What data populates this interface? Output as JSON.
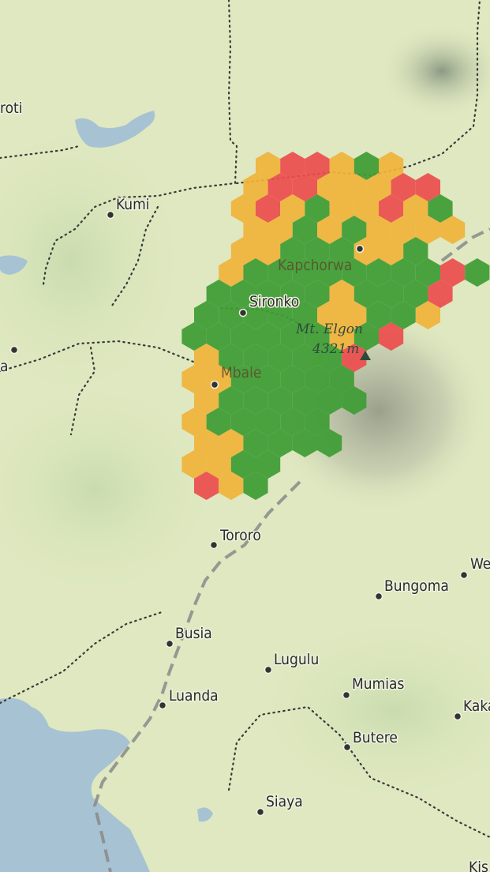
{
  "map": {
    "colors": {
      "land": "#dfe8c0",
      "water": "#a7c3d3",
      "hex_green": "#3e9c35",
      "hex_orange": "#f0b33a",
      "hex_red": "#ec4d4d"
    },
    "places": [
      {
        "id": "soroti",
        "label": "roti"
      },
      {
        "id": "kumi",
        "label": "Kumi"
      },
      {
        "id": "kapchorwa",
        "label": "Kapchorwa"
      },
      {
        "id": "sironko",
        "label": "Sironko"
      },
      {
        "id": "mbale",
        "label": "Mbale"
      },
      {
        "id": "west-edge",
        "label": "a"
      },
      {
        "id": "tororo",
        "label": "Tororo"
      },
      {
        "id": "webuye",
        "label": "We"
      },
      {
        "id": "bungoma",
        "label": "Bungoma"
      },
      {
        "id": "busia",
        "label": "Busia"
      },
      {
        "id": "lugulu",
        "label": "Lugulu"
      },
      {
        "id": "mumias",
        "label": "Mumias"
      },
      {
        "id": "luanda",
        "label": "Luanda"
      },
      {
        "id": "kakamega",
        "label": "Kaka"
      },
      {
        "id": "butere",
        "label": "Butere"
      },
      {
        "id": "siaya",
        "label": "Siaya"
      },
      {
        "id": "kisumu",
        "label": "Kis"
      }
    ],
    "peak": {
      "name": "Mt. Elgon",
      "elevation": "4321m"
    }
  }
}
